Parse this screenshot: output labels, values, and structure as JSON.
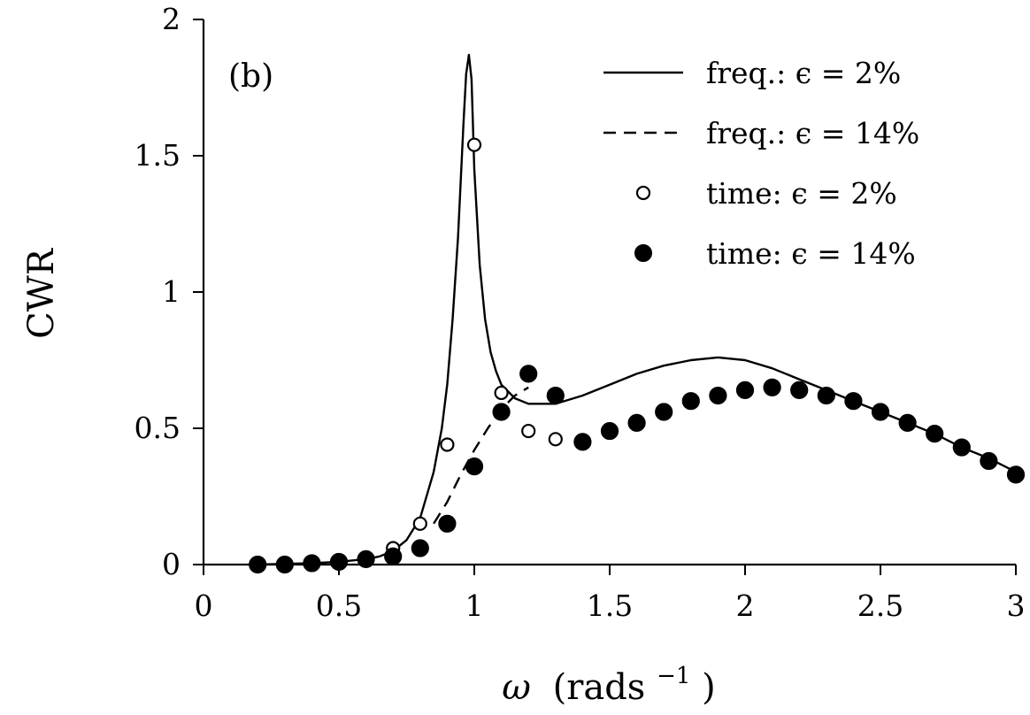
{
  "chart_data": {
    "type": "line",
    "panel_label": "(b)",
    "xlabel_symbol": "ω",
    "xlabel_unit": "(rads",
    "xlabel_exp": "−1",
    "xlabel_close": ")",
    "ylabel": "CWR",
    "xlim": [
      0,
      3
    ],
    "ylim": [
      0,
      2
    ],
    "xticks": [
      0,
      0.5,
      1,
      1.5,
      2,
      2.5,
      3
    ],
    "xtick_labels": [
      "0",
      "0.5",
      "1",
      "1.5",
      "2",
      "2.5",
      "3"
    ],
    "yticks": [
      0,
      0.5,
      1,
      1.5,
      2
    ],
    "ytick_labels": [
      "0",
      "0.5",
      "1",
      "1.5",
      "2"
    ],
    "grid": false,
    "legend_position": "top-right",
    "series": [
      {
        "name": "freq.: ϵ = 2%",
        "style": "solid-line",
        "x": [
          0.2,
          0.4,
          0.5,
          0.6,
          0.65,
          0.7,
          0.75,
          0.8,
          0.85,
          0.88,
          0.9,
          0.92,
          0.94,
          0.96,
          0.97,
          0.98,
          0.99,
          1.0,
          1.02,
          1.04,
          1.06,
          1.08,
          1.1,
          1.15,
          1.2,
          1.3,
          1.4,
          1.5,
          1.6,
          1.7,
          1.8,
          1.9,
          2.0,
          2.1,
          2.2,
          2.3,
          2.4,
          2.5,
          2.6,
          2.7,
          2.8,
          2.9,
          3.0
        ],
        "y": [
          0.0,
          0.005,
          0.01,
          0.02,
          0.03,
          0.05,
          0.09,
          0.17,
          0.34,
          0.5,
          0.66,
          0.9,
          1.2,
          1.62,
          1.8,
          1.87,
          1.78,
          1.45,
          1.1,
          0.9,
          0.78,
          0.71,
          0.66,
          0.61,
          0.59,
          0.59,
          0.62,
          0.66,
          0.7,
          0.73,
          0.75,
          0.76,
          0.75,
          0.72,
          0.68,
          0.64,
          0.6,
          0.56,
          0.52,
          0.48,
          0.43,
          0.39,
          0.34
        ]
      },
      {
        "name": "freq.: ϵ = 14%",
        "style": "dashed-line",
        "x": [
          0.85,
          0.9,
          0.95,
          1.0,
          1.05,
          1.1,
          1.15,
          1.2
        ],
        "y": [
          0.15,
          0.23,
          0.33,
          0.42,
          0.5,
          0.57,
          0.62,
          0.65
        ]
      },
      {
        "name": "time: ϵ = 2%",
        "style": "open-circle",
        "x": [
          0.7,
          0.8,
          0.9,
          1.0,
          1.1,
          1.2,
          1.3
        ],
        "y": [
          0.06,
          0.15,
          0.44,
          1.54,
          0.63,
          0.49,
          0.46
        ]
      },
      {
        "name": "time: ϵ = 14%",
        "style": "filled-circle",
        "x": [
          0.2,
          0.3,
          0.4,
          0.5,
          0.6,
          0.7,
          0.8,
          0.9,
          1.0,
          1.1,
          1.2,
          1.3,
          1.4,
          1.5,
          1.6,
          1.7,
          1.8,
          1.9,
          2.0,
          2.1,
          2.2,
          2.3,
          2.4,
          2.5,
          2.6,
          2.7,
          2.8,
          2.9,
          3.0
        ],
        "y": [
          0.0,
          0.0,
          0.005,
          0.01,
          0.02,
          0.03,
          0.06,
          0.15,
          0.36,
          0.56,
          0.7,
          0.62,
          0.45,
          0.49,
          0.52,
          0.56,
          0.6,
          0.62,
          0.64,
          0.65,
          0.64,
          0.62,
          0.6,
          0.56,
          0.52,
          0.48,
          0.43,
          0.38,
          0.33
        ]
      }
    ],
    "legend": [
      {
        "label": "freq.: ϵ = 2%",
        "marker": "solid-line"
      },
      {
        "label": "freq.: ϵ = 14%",
        "marker": "dashed-line"
      },
      {
        "label": "time: ϵ = 2%",
        "marker": "open-circle"
      },
      {
        "label": "time: ϵ = 14%",
        "marker": "filled-circle"
      }
    ]
  }
}
